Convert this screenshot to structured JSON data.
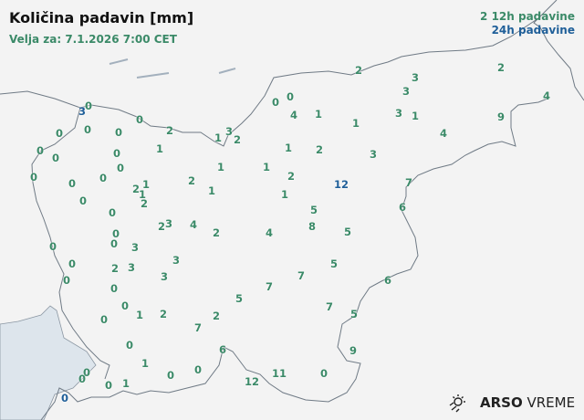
{
  "header": {
    "title": "Količina padavin [mm]",
    "subtitle": "Velja za: 7.1.2026 7:00 CET"
  },
  "legend": {
    "sample": "2",
    "label_12h": "12h padavine",
    "label_24h": "24h padavine"
  },
  "colors": {
    "12h": "#3b8a68",
    "24h": "#1f5f99",
    "background": "#f3f3f3",
    "sea": "#dde5ec",
    "border": "#6f7a85"
  },
  "logo": {
    "icon": "sun-rain-icon",
    "brand_bold": "ARSO",
    "brand_light": "VREME"
  },
  "stations": [
    {
      "v": "3",
      "t": "24h"
    },
    {
      "v": "0",
      "t": "12h"
    },
    {
      "v": "0",
      "t": "12h"
    },
    {
      "v": "2",
      "t": "12h"
    },
    {
      "v": "1",
      "t": "12h"
    },
    {
      "v": "3",
      "t": "12h"
    },
    {
      "v": "2",
      "t": "12h"
    },
    {
      "v": "0",
      "t": "12h"
    },
    {
      "v": "0",
      "t": "12h"
    },
    {
      "v": "4",
      "t": "12h"
    },
    {
      "v": "1",
      "t": "12h"
    },
    {
      "v": "1",
      "t": "12h"
    },
    {
      "v": "2",
      "t": "12h"
    },
    {
      "v": "3",
      "t": "12h"
    },
    {
      "v": "3",
      "t": "12h"
    },
    {
      "v": "3",
      "t": "12h"
    },
    {
      "v": "1",
      "t": "12h"
    },
    {
      "v": "4",
      "t": "12h"
    },
    {
      "v": "2",
      "t": "12h"
    },
    {
      "v": "4",
      "t": "12h"
    },
    {
      "v": "9",
      "t": "12h"
    },
    {
      "v": "3",
      "t": "12h"
    },
    {
      "v": "2",
      "t": "12h"
    },
    {
      "v": "1",
      "t": "12h"
    },
    {
      "v": "2",
      "t": "12h"
    },
    {
      "v": "1",
      "t": "12h"
    },
    {
      "v": "1",
      "t": "12h"
    },
    {
      "v": "12",
      "t": "24h"
    },
    {
      "v": "7",
      "t": "12h"
    },
    {
      "v": "6",
      "t": "12h"
    },
    {
      "v": "5",
      "t": "12h"
    },
    {
      "v": "8",
      "t": "12h"
    },
    {
      "v": "5",
      "t": "12h"
    },
    {
      "v": "5",
      "t": "12h"
    },
    {
      "v": "7",
      "t": "12h"
    },
    {
      "v": "6",
      "t": "12h"
    },
    {
      "v": "7",
      "t": "12h"
    },
    {
      "v": "5",
      "t": "12h"
    },
    {
      "v": "9",
      "t": "12h"
    },
    {
      "v": "0",
      "t": "12h"
    },
    {
      "v": "11",
      "t": "12h"
    },
    {
      "v": "12",
      "t": "12h"
    },
    {
      "v": "6",
      "t": "12h"
    },
    {
      "v": "0",
      "t": "12h"
    },
    {
      "v": "0",
      "t": "12h"
    },
    {
      "v": "1",
      "t": "12h"
    },
    {
      "v": "0",
      "t": "12h"
    },
    {
      "v": "1",
      "t": "12h"
    },
    {
      "v": "0",
      "t": "12h"
    },
    {
      "v": "0",
      "t": "12h"
    },
    {
      "v": "0",
      "t": "12h"
    },
    {
      "v": "0",
      "t": "24h"
    },
    {
      "v": "0",
      "t": "12h"
    },
    {
      "v": "1",
      "t": "12h"
    },
    {
      "v": "2",
      "t": "12h"
    },
    {
      "v": "7",
      "t": "12h"
    },
    {
      "v": "2",
      "t": "12h"
    },
    {
      "v": "5",
      "t": "12h"
    },
    {
      "v": "7",
      "t": "12h"
    },
    {
      "v": "2",
      "t": "12h"
    },
    {
      "v": "4",
      "t": "12h"
    },
    {
      "v": "4",
      "t": "12h"
    },
    {
      "v": "3",
      "t": "12h"
    },
    {
      "v": "2",
      "t": "12h"
    },
    {
      "v": "3",
      "t": "12h"
    },
    {
      "v": "3",
      "t": "12h"
    },
    {
      "v": "3",
      "t": "12h"
    },
    {
      "v": "2",
      "t": "12h"
    },
    {
      "v": "0",
      "t": "12h"
    },
    {
      "v": "0",
      "t": "12h"
    },
    {
      "v": "3",
      "t": "12h"
    },
    {
      "v": "0",
      "t": "12h"
    },
    {
      "v": "0",
      "t": "12h"
    },
    {
      "v": "0",
      "t": "12h"
    },
    {
      "v": "0",
      "t": "12h"
    },
    {
      "v": "0",
      "t": "12h"
    },
    {
      "v": "0",
      "t": "12h"
    },
    {
      "v": "0",
      "t": "12h"
    },
    {
      "v": "0",
      "t": "12h"
    },
    {
      "v": "0",
      "t": "12h"
    },
    {
      "v": "0",
      "t": "12h"
    },
    {
      "v": "0",
      "t": "12h"
    },
    {
      "v": "0",
      "t": "12h"
    },
    {
      "v": "0",
      "t": "12h"
    },
    {
      "v": "0",
      "t": "12h"
    },
    {
      "v": "0",
      "t": "12h"
    },
    {
      "v": "0",
      "t": "12h"
    },
    {
      "v": "0",
      "t": "12h"
    },
    {
      "v": "1",
      "t": "12h"
    },
    {
      "v": "2",
      "t": "12h"
    },
    {
      "v": "1",
      "t": "12h"
    },
    {
      "v": "1",
      "t": "12h"
    },
    {
      "v": "2",
      "t": "12h"
    },
    {
      "v": "2",
      "t": "12h"
    },
    {
      "v": "1",
      "t": "12h"
    },
    {
      "v": "1",
      "t": "12h"
    }
  ]
}
